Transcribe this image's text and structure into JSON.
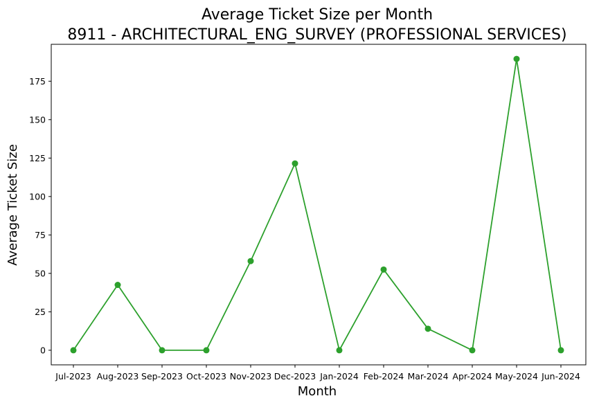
{
  "chart_data": {
    "type": "line",
    "title": "Average Ticket Size per Month",
    "subtitle": "8911 - ARCHITECTURAL_ENG_SURVEY (PROFESSIONAL SERVICES)",
    "xlabel": "Month",
    "ylabel": "Average Ticket Size",
    "categories": [
      "Jul-2023",
      "Aug-2023",
      "Sep-2023",
      "Oct-2023",
      "Nov-2023",
      "Dec-2023",
      "Jan-2024",
      "Feb-2024",
      "Mar-2024",
      "Apr-2024",
      "May-2024",
      "Jun-2024"
    ],
    "series": [
      {
        "values": [
          0,
          42.5,
          0,
          0,
          58,
          121.5,
          0,
          52.5,
          14,
          0,
          189.5,
          0
        ]
      }
    ],
    "yticks": [
      0,
      25,
      50,
      75,
      100,
      125,
      150,
      175
    ],
    "ylim": [
      -9.5,
      199
    ],
    "grid": false,
    "legend": "none",
    "line_color": "#2ca02c"
  }
}
